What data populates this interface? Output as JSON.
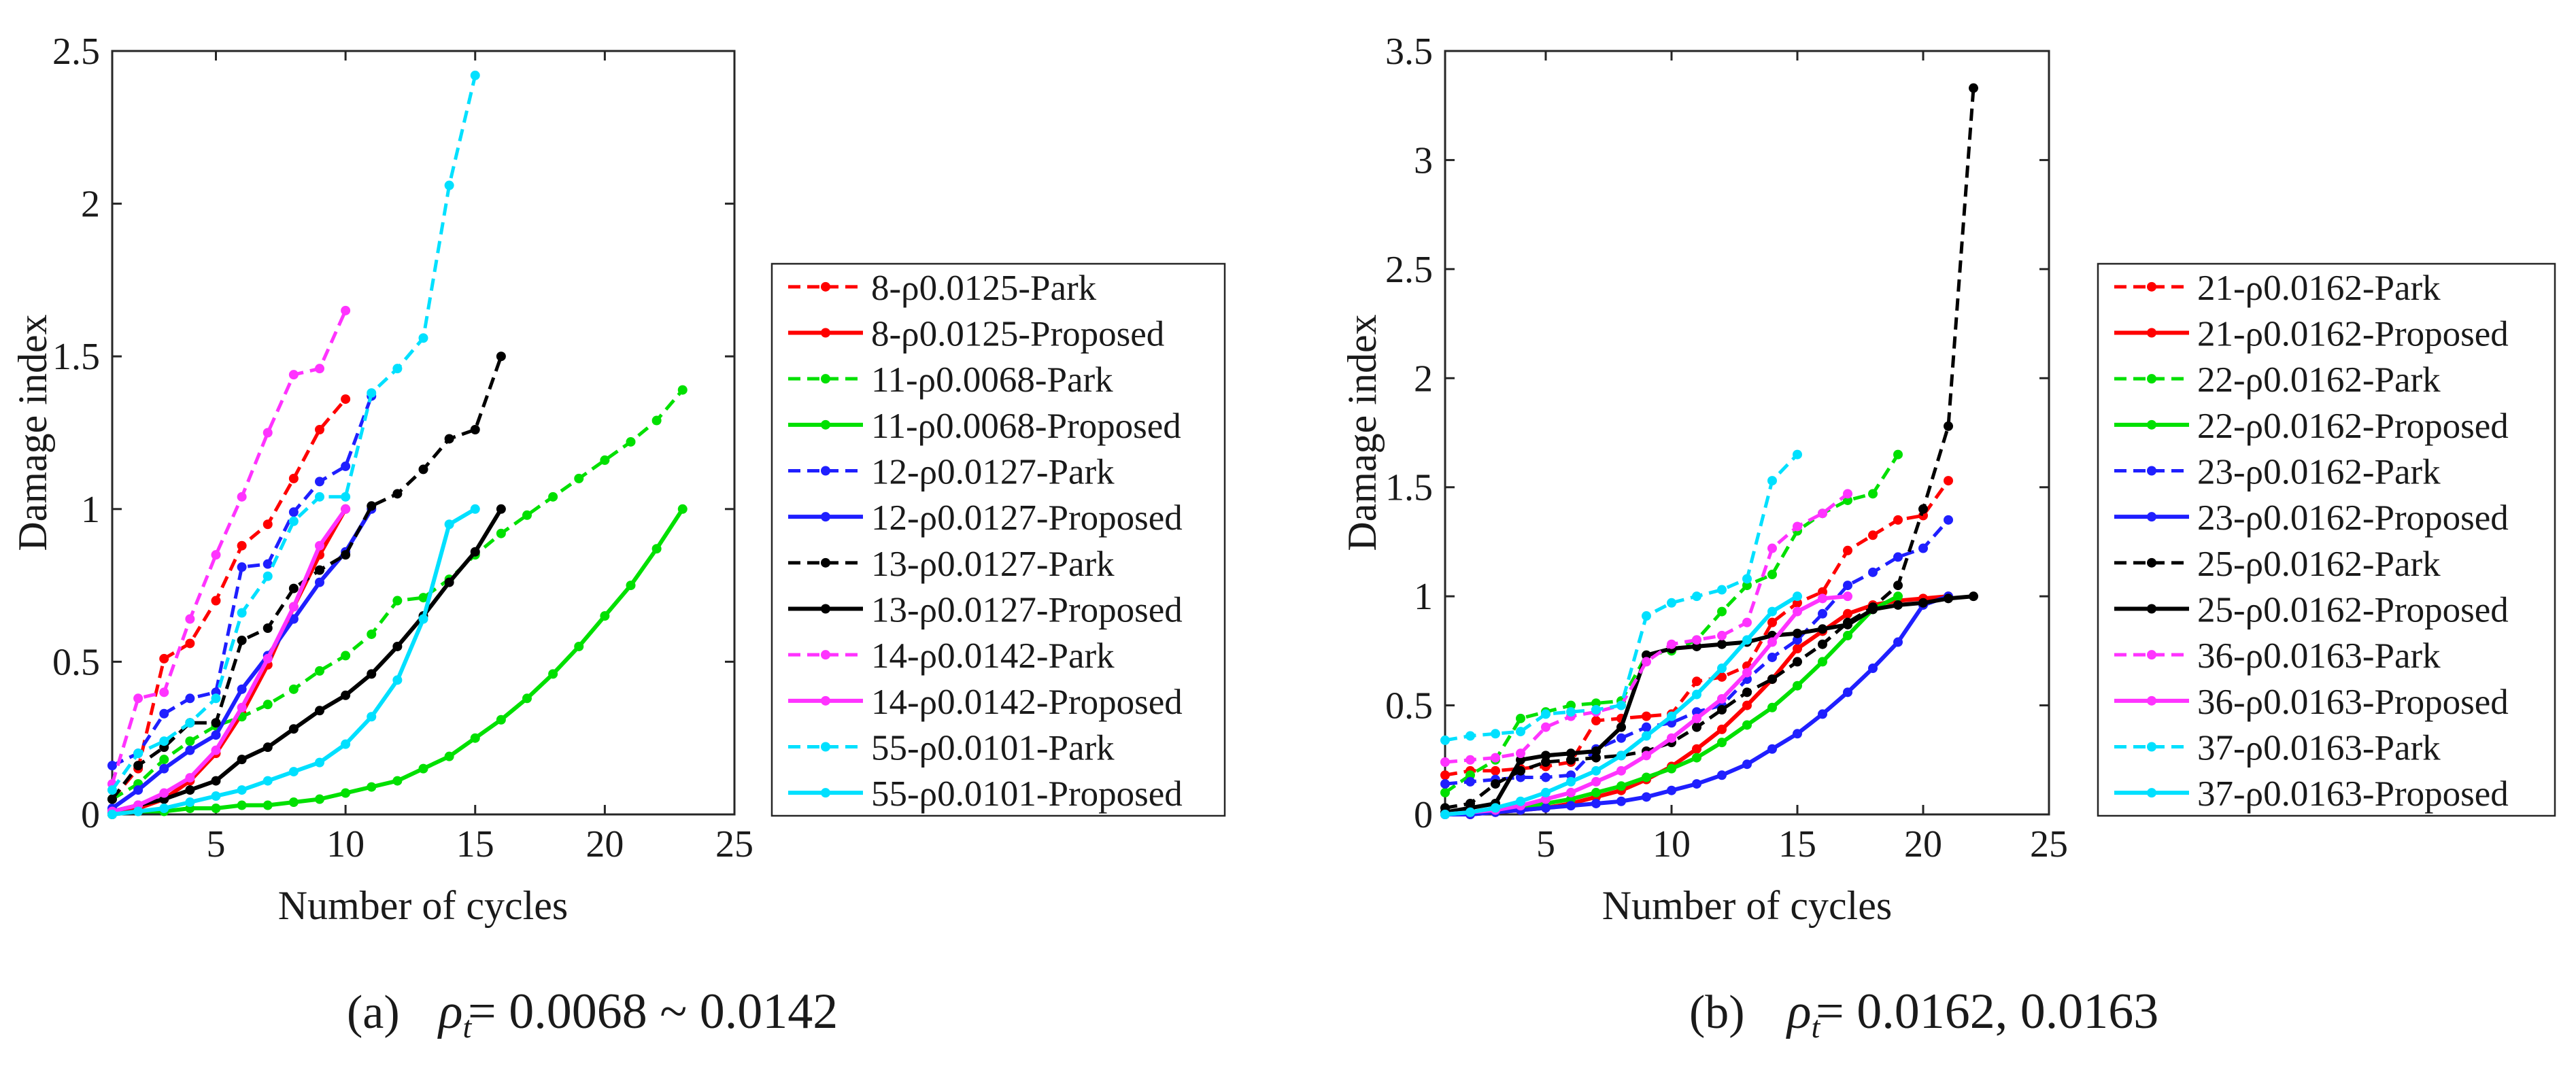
{
  "chart_data": [
    {
      "type": "line",
      "panel": "a",
      "caption": {
        "label": "(a)",
        "formula": "ρ_t = 0.0068 ~ 0.0142"
      },
      "xlabel": "Number of cycles",
      "ylabel": "Damage index",
      "xlim": [
        1,
        25
      ],
      "ylim": [
        0,
        2.5
      ],
      "xticks": [
        5,
        10,
        15,
        20,
        25
      ],
      "yticks": [
        0,
        0.5,
        1,
        1.5,
        2,
        2.5
      ],
      "ytick_labels": [
        "0",
        "0.5",
        "1",
        "1.5",
        "2",
        "2.5"
      ],
      "legend_position": "outside-right",
      "series": [
        {
          "name": "8-ρ0.0125-Park",
          "color": "#ff0000",
          "style": "dashed",
          "x": [
            1,
            2,
            3,
            4,
            5,
            6,
            7,
            8,
            9,
            10
          ],
          "y": [
            0.05,
            0.15,
            0.51,
            0.56,
            0.7,
            0.88,
            0.95,
            1.1,
            1.26,
            1.36
          ]
        },
        {
          "name": "8-ρ0.0125-Proposed",
          "color": "#ff0000",
          "style": "solid",
          "x": [
            1,
            2,
            3,
            4,
            5,
            6,
            7,
            8,
            9,
            10
          ],
          "y": [
            0.0,
            0.02,
            0.05,
            0.11,
            0.2,
            0.33,
            0.49,
            0.68,
            0.85,
            1.0
          ]
        },
        {
          "name": "11-ρ0.0068-Park",
          "color": "#00e000",
          "style": "dashed",
          "x": [
            1,
            2,
            3,
            4,
            5,
            6,
            7,
            8,
            9,
            10,
            11,
            12,
            13,
            14,
            15,
            16,
            17,
            18,
            19,
            20,
            21,
            22,
            23
          ],
          "y": [
            0.05,
            0.1,
            0.18,
            0.24,
            0.29,
            0.32,
            0.36,
            0.41,
            0.47,
            0.52,
            0.59,
            0.7,
            0.71,
            0.77,
            0.85,
            0.92,
            0.98,
            1.04,
            1.1,
            1.16,
            1.22,
            1.29,
            1.39
          ]
        },
        {
          "name": "11-ρ0.0068-Proposed",
          "color": "#00e000",
          "style": "solid",
          "x": [
            1,
            2,
            3,
            4,
            5,
            6,
            7,
            8,
            9,
            10,
            11,
            12,
            13,
            14,
            15,
            16,
            17,
            18,
            19,
            20,
            21,
            22,
            23
          ],
          "y": [
            0.0,
            0.01,
            0.01,
            0.02,
            0.02,
            0.03,
            0.03,
            0.04,
            0.05,
            0.07,
            0.09,
            0.11,
            0.15,
            0.19,
            0.25,
            0.31,
            0.38,
            0.46,
            0.55,
            0.65,
            0.75,
            0.87,
            1.0
          ]
        },
        {
          "name": "12-ρ0.0127-Park",
          "color": "#1f1fff",
          "style": "dashed",
          "x": [
            1,
            2,
            3,
            4,
            5,
            6,
            7,
            8,
            9,
            10,
            11
          ],
          "y": [
            0.16,
            0.2,
            0.33,
            0.38,
            0.4,
            0.81,
            0.82,
            0.99,
            1.09,
            1.14,
            1.37
          ]
        },
        {
          "name": "12-ρ0.0127-Proposed",
          "color": "#1f1fff",
          "style": "solid",
          "x": [
            1,
            2,
            3,
            4,
            5,
            6,
            7,
            8,
            9,
            10,
            11
          ],
          "y": [
            0.02,
            0.08,
            0.15,
            0.21,
            0.26,
            0.41,
            0.52,
            0.64,
            0.76,
            0.86,
            1.0
          ]
        },
        {
          "name": "13-ρ0.0127-Park",
          "color": "#000000",
          "style": "dashed",
          "x": [
            1,
            2,
            3,
            4,
            5,
            6,
            7,
            8,
            9,
            10,
            11,
            12,
            13,
            14,
            15,
            16
          ],
          "y": [
            0.05,
            0.16,
            0.22,
            0.3,
            0.3,
            0.57,
            0.61,
            0.74,
            0.8,
            0.85,
            1.01,
            1.05,
            1.13,
            1.23,
            1.26,
            1.5
          ]
        },
        {
          "name": "13-ρ0.0127-Proposed",
          "color": "#000000",
          "style": "solid",
          "x": [
            1,
            2,
            3,
            4,
            5,
            6,
            7,
            8,
            9,
            10,
            11,
            12,
            13,
            14,
            15,
            16
          ],
          "y": [
            0.01,
            0.03,
            0.05,
            0.08,
            0.11,
            0.18,
            0.22,
            0.28,
            0.34,
            0.39,
            0.46,
            0.55,
            0.65,
            0.76,
            0.86,
            1.0
          ]
        },
        {
          "name": "14-ρ0.0142-Park",
          "color": "#ff33ff",
          "style": "dashed",
          "x": [
            1,
            2,
            3,
            4,
            5,
            6,
            7,
            8,
            9,
            10
          ],
          "y": [
            0.1,
            0.38,
            0.4,
            0.64,
            0.85,
            1.04,
            1.25,
            1.44,
            1.46,
            1.65
          ]
        },
        {
          "name": "14-ρ0.0142-Proposed",
          "color": "#ff33ff",
          "style": "solid",
          "x": [
            1,
            2,
            3,
            4,
            5,
            6,
            7,
            8,
            9,
            10
          ],
          "y": [
            0.01,
            0.03,
            0.07,
            0.12,
            0.21,
            0.35,
            0.51,
            0.68,
            0.88,
            1.0
          ]
        },
        {
          "name": "55-ρ0.0101-Park",
          "color": "#00e0ff",
          "style": "dashed",
          "x": [
            1,
            2,
            3,
            4,
            5,
            6,
            7,
            8,
            9,
            10,
            11,
            12,
            13,
            14,
            15
          ],
          "y": [
            0.08,
            0.2,
            0.24,
            0.3,
            0.38,
            0.66,
            0.78,
            0.96,
            1.04,
            1.04,
            1.38,
            1.46,
            1.56,
            2.06,
            2.42
          ]
        },
        {
          "name": "55-ρ0.0101-Proposed",
          "color": "#00e0ff",
          "style": "solid",
          "x": [
            1,
            2,
            3,
            4,
            5,
            6,
            7,
            8,
            9,
            10,
            11,
            12,
            13,
            14,
            15
          ],
          "y": [
            0.0,
            0.01,
            0.02,
            0.04,
            0.06,
            0.08,
            0.11,
            0.14,
            0.17,
            0.23,
            0.32,
            0.44,
            0.64,
            0.95,
            1.0
          ]
        }
      ]
    },
    {
      "type": "line",
      "panel": "b",
      "caption": {
        "label": "(b)",
        "formula": "ρ_t = 0.0162, 0.0163"
      },
      "xlabel": "Number of cycles",
      "ylabel": "Damage index",
      "xlim": [
        1,
        25
      ],
      "ylim": [
        0,
        3.5
      ],
      "xticks": [
        5,
        10,
        15,
        20,
        25
      ],
      "yticks": [
        0,
        0.5,
        1,
        1.5,
        2,
        2.5,
        3,
        3.5
      ],
      "ytick_labels": [
        "0",
        "0.5",
        "1",
        "1.5",
        "2",
        "2.5",
        "3",
        "3.5"
      ],
      "legend_position": "outside-right",
      "series": [
        {
          "name": "21-ρ0.0162-Park",
          "color": "#ff0000",
          "style": "dashed",
          "x": [
            1,
            2,
            3,
            4,
            5,
            6,
            7,
            8,
            9,
            10,
            11,
            12,
            13,
            14,
            15,
            16,
            17,
            18,
            19,
            20,
            21
          ],
          "y": [
            0.18,
            0.2,
            0.2,
            0.21,
            0.22,
            0.24,
            0.43,
            0.44,
            0.45,
            0.46,
            0.61,
            0.63,
            0.68,
            0.88,
            0.97,
            1.02,
            1.21,
            1.28,
            1.35,
            1.37,
            1.53
          ]
        },
        {
          "name": "21-ρ0.0162-Proposed",
          "color": "#ff0000",
          "style": "solid",
          "x": [
            1,
            2,
            3,
            4,
            5,
            6,
            7,
            8,
            9,
            10,
            11,
            12,
            13,
            14,
            15,
            16,
            17,
            18,
            19,
            20,
            21
          ],
          "y": [
            0.0,
            0.0,
            0.01,
            0.02,
            0.03,
            0.05,
            0.08,
            0.11,
            0.16,
            0.22,
            0.3,
            0.39,
            0.5,
            0.62,
            0.76,
            0.84,
            0.92,
            0.96,
            0.98,
            0.99,
            1.0
          ]
        },
        {
          "name": "22-ρ0.0162-Park",
          "color": "#00e000",
          "style": "dashed",
          "x": [
            1,
            2,
            3,
            4,
            5,
            6,
            7,
            8,
            9,
            10,
            11,
            12,
            13,
            14,
            15,
            16,
            17,
            18,
            19
          ],
          "y": [
            0.1,
            0.18,
            0.25,
            0.44,
            0.47,
            0.5,
            0.51,
            0.52,
            0.73,
            0.75,
            0.8,
            0.93,
            1.05,
            1.1,
            1.3,
            1.38,
            1.44,
            1.47,
            1.65
          ]
        },
        {
          "name": "22-ρ0.0162-Proposed",
          "color": "#00e000",
          "style": "solid",
          "x": [
            1,
            2,
            3,
            4,
            5,
            6,
            7,
            8,
            9,
            10,
            11,
            12,
            13,
            14,
            15,
            16,
            17,
            18,
            19
          ],
          "y": [
            0.0,
            0.01,
            0.02,
            0.03,
            0.05,
            0.07,
            0.1,
            0.13,
            0.17,
            0.21,
            0.26,
            0.33,
            0.41,
            0.49,
            0.59,
            0.7,
            0.82,
            0.94,
            1.0
          ]
        },
        {
          "name": "23-ρ0.0162-Park",
          "color": "#1f1fff",
          "style": "dashed",
          "x": [
            1,
            2,
            3,
            4,
            5,
            6,
            7,
            8,
            9,
            10,
            11,
            12,
            13,
            14,
            15,
            16,
            17,
            18,
            19,
            20,
            21
          ],
          "y": [
            0.14,
            0.15,
            0.16,
            0.17,
            0.17,
            0.18,
            0.3,
            0.35,
            0.4,
            0.42,
            0.47,
            0.5,
            0.62,
            0.72,
            0.8,
            0.92,
            1.05,
            1.11,
            1.18,
            1.22,
            1.35
          ]
        },
        {
          "name": "23-ρ0.0162-Proposed",
          "color": "#1f1fff",
          "style": "solid",
          "x": [
            1,
            2,
            3,
            4,
            5,
            6,
            7,
            8,
            9,
            10,
            11,
            12,
            13,
            14,
            15,
            16,
            17,
            18,
            19,
            20,
            21
          ],
          "y": [
            0.0,
            0.0,
            0.01,
            0.02,
            0.03,
            0.04,
            0.05,
            0.06,
            0.08,
            0.11,
            0.14,
            0.18,
            0.23,
            0.3,
            0.37,
            0.46,
            0.56,
            0.67,
            0.79,
            0.96,
            1.0
          ]
        },
        {
          "name": "25-ρ0.0162-Park",
          "color": "#000000",
          "style": "dashed",
          "x": [
            1,
            2,
            3,
            4,
            5,
            6,
            7,
            8,
            9,
            10,
            11,
            12,
            13,
            14,
            15,
            16,
            17,
            18,
            19,
            20,
            21,
            22
          ],
          "y": [
            0.03,
            0.05,
            0.14,
            0.2,
            0.24,
            0.25,
            0.26,
            0.27,
            0.29,
            0.33,
            0.4,
            0.48,
            0.56,
            0.62,
            0.7,
            0.78,
            0.88,
            0.95,
            1.05,
            1.4,
            1.78,
            3.33
          ]
        },
        {
          "name": "25-ρ0.0162-Proposed",
          "color": "#000000",
          "style": "solid",
          "x": [
            1,
            2,
            3,
            4,
            5,
            6,
            7,
            8,
            9,
            10,
            11,
            12,
            13,
            14,
            15,
            16,
            17,
            18,
            19,
            20,
            21,
            22
          ],
          "y": [
            0.01,
            0.03,
            0.05,
            0.25,
            0.27,
            0.28,
            0.29,
            0.4,
            0.73,
            0.76,
            0.77,
            0.78,
            0.79,
            0.82,
            0.83,
            0.85,
            0.87,
            0.94,
            0.96,
            0.97,
            0.99,
            1.0
          ]
        },
        {
          "name": "36-ρ0.0163-Park",
          "color": "#ff33ff",
          "style": "dashed",
          "x": [
            1,
            2,
            3,
            4,
            5,
            6,
            7,
            8,
            9,
            10,
            11,
            12,
            13,
            14,
            15,
            16,
            17
          ],
          "y": [
            0.24,
            0.25,
            0.26,
            0.28,
            0.4,
            0.45,
            0.47,
            0.5,
            0.7,
            0.78,
            0.8,
            0.82,
            0.88,
            1.22,
            1.32,
            1.38,
            1.47
          ]
        },
        {
          "name": "36-ρ0.0163-Proposed",
          "color": "#ff33ff",
          "style": "solid",
          "x": [
            1,
            2,
            3,
            4,
            5,
            6,
            7,
            8,
            9,
            10,
            11,
            12,
            13,
            14,
            15,
            16,
            17
          ],
          "y": [
            0.0,
            0.01,
            0.02,
            0.04,
            0.07,
            0.1,
            0.15,
            0.2,
            0.27,
            0.35,
            0.44,
            0.53,
            0.65,
            0.79,
            0.93,
            0.99,
            1.0
          ]
        },
        {
          "name": "37-ρ0.0163-Park",
          "color": "#00e0ff",
          "style": "dashed",
          "x": [
            1,
            2,
            3,
            4,
            5,
            6,
            7,
            8,
            9,
            10,
            11,
            12,
            13,
            14,
            15
          ],
          "y": [
            0.34,
            0.36,
            0.37,
            0.38,
            0.46,
            0.47,
            0.48,
            0.5,
            0.91,
            0.97,
            1.0,
            1.03,
            1.08,
            1.53,
            1.65
          ]
        },
        {
          "name": "37-ρ0.0163-Proposed",
          "color": "#00e0ff",
          "style": "solid",
          "x": [
            1,
            2,
            3,
            4,
            5,
            6,
            7,
            8,
            9,
            10,
            11,
            12,
            13,
            14,
            15
          ],
          "y": [
            0.0,
            0.01,
            0.03,
            0.06,
            0.1,
            0.15,
            0.2,
            0.27,
            0.36,
            0.45,
            0.55,
            0.67,
            0.8,
            0.93,
            1.0
          ]
        }
      ]
    }
  ]
}
